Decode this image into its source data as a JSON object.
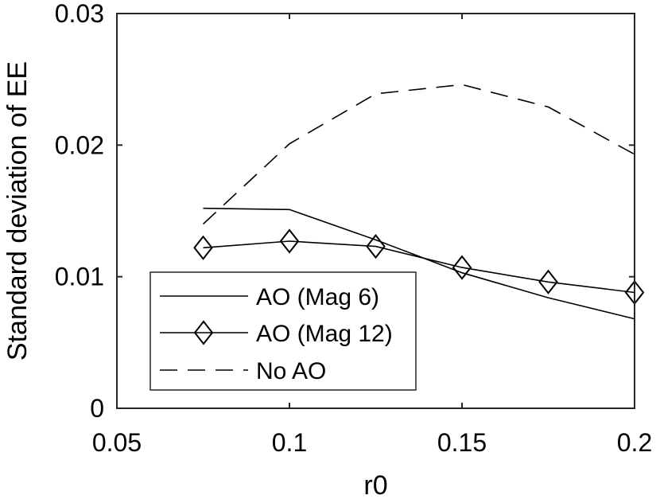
{
  "chart_data": {
    "type": "line",
    "title": "",
    "xlabel": "r0",
    "ylabel": "Standard deviation of EE",
    "xlim": [
      0.05,
      0.2
    ],
    "ylim": [
      0,
      0.03
    ],
    "xticks": [
      0.05,
      0.1,
      0.15,
      0.2
    ],
    "yticks": [
      0,
      0.01,
      0.02,
      0.03
    ],
    "xtick_labels": [
      "0.05",
      "0.1",
      "0.15",
      "0.2"
    ],
    "ytick_labels": [
      "0",
      "0.01",
      "0.02",
      "0.03"
    ],
    "grid": false,
    "legend_position": "bottom-left",
    "series": [
      {
        "name": "AO (Mag 6)",
        "style": "solid",
        "marker": "none",
        "color": "#000000",
        "x": [
          0.075,
          0.1,
          0.125,
          0.15,
          0.175,
          0.2
        ],
        "y": [
          0.0152,
          0.0151,
          0.0128,
          0.0103,
          0.0084,
          0.0068
        ]
      },
      {
        "name": "AO (Mag 12)",
        "style": "solid",
        "marker": "diamond",
        "color": "#000000",
        "x": [
          0.075,
          0.1,
          0.125,
          0.15,
          0.175,
          0.2
        ],
        "y": [
          0.0122,
          0.0127,
          0.0123,
          0.0107,
          0.0096,
          0.0088
        ]
      },
      {
        "name": "No AO",
        "style": "dashed",
        "marker": "none",
        "color": "#000000",
        "x": [
          0.075,
          0.1,
          0.125,
          0.15,
          0.175,
          0.2
        ],
        "y": [
          0.014,
          0.0201,
          0.0239,
          0.0246,
          0.0229,
          0.0193
        ]
      }
    ]
  }
}
